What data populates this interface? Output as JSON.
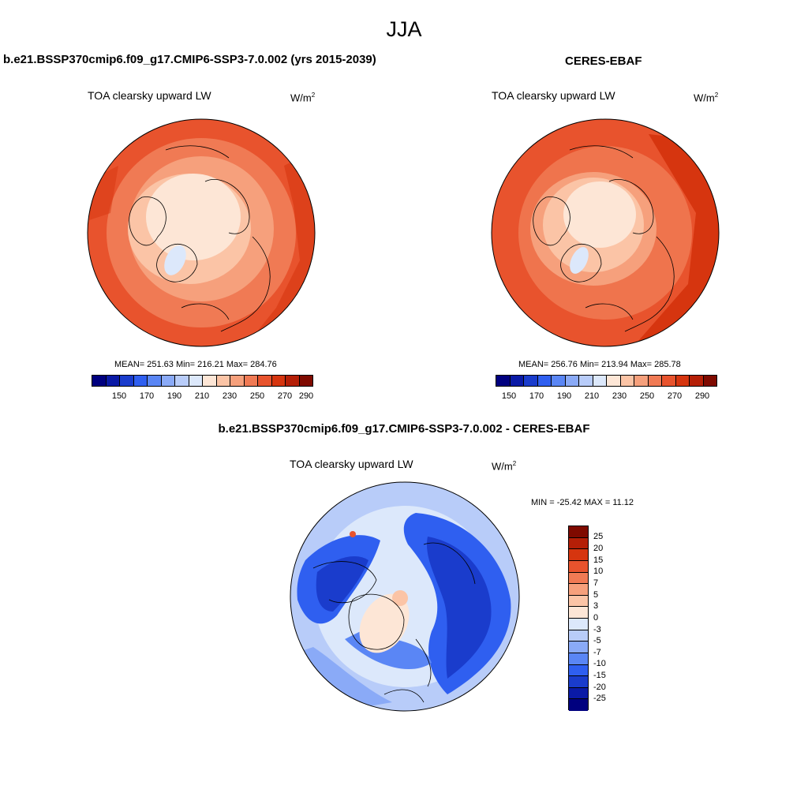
{
  "season": "JJA",
  "panels": [
    {
      "title": "b.e21.BSSP370cmip6.f09_g17.CMIP6-SSP3-7.0.002 (yrs 2015-2039)",
      "variable": "TOA clearsky upward LW",
      "units": "W/m",
      "units_exp": "2",
      "stats": "MEAN= 251.63  Min= 216.21  Max= 284.76",
      "colorbar_labels": [
        "150",
        "170",
        "190",
        "210",
        "230",
        "250",
        "270",
        "290"
      ]
    },
    {
      "title": "CERES-EBAF",
      "variable": "TOA clearsky upward LW",
      "units": "W/m",
      "units_exp": "2",
      "stats": "MEAN= 256.76  Min= 213.94  Max= 285.78",
      "colorbar_labels": [
        "150",
        "170",
        "190",
        "210",
        "230",
        "250",
        "270",
        "290"
      ]
    }
  ],
  "diff": {
    "title": "b.e21.BSSP370cmip6.f09_g17.CMIP6-SSP3-7.0.002 - CERES-EBAF",
    "variable": "TOA clearsky upward LW",
    "units": "W/m",
    "units_exp": "2",
    "minmax": "MIN = -25.42 MAX =  11.12",
    "colorbar_labels": [
      "25",
      "20",
      "15",
      "10",
      "7",
      "5",
      "3",
      "0",
      "-3",
      "-5",
      "-7",
      "-10",
      "-15",
      "-20",
      "-25"
    ]
  },
  "colors": {
    "abs_scale": [
      "#00007f",
      "#0a1aa6",
      "#1a3ccc",
      "#2f5ff0",
      "#5a86f5",
      "#8aaaf7",
      "#b8ccf9",
      "#dce8fb",
      "#fde6d6",
      "#fbc4a6",
      "#f6a07c",
      "#f07a54",
      "#e8532d",
      "#d6350f",
      "#b51f07",
      "#7f0a00"
    ],
    "diff_scale": [
      "#7f0a00",
      "#b51f07",
      "#d6350f",
      "#e8532d",
      "#f07a54",
      "#f6a07c",
      "#fbc4a6",
      "#fde6d6",
      "#dce8fb",
      "#b8ccf9",
      "#8aaaf7",
      "#5a86f5",
      "#2f5ff0",
      "#1a3ccc",
      "#0a1aa6",
      "#00007f"
    ]
  }
}
